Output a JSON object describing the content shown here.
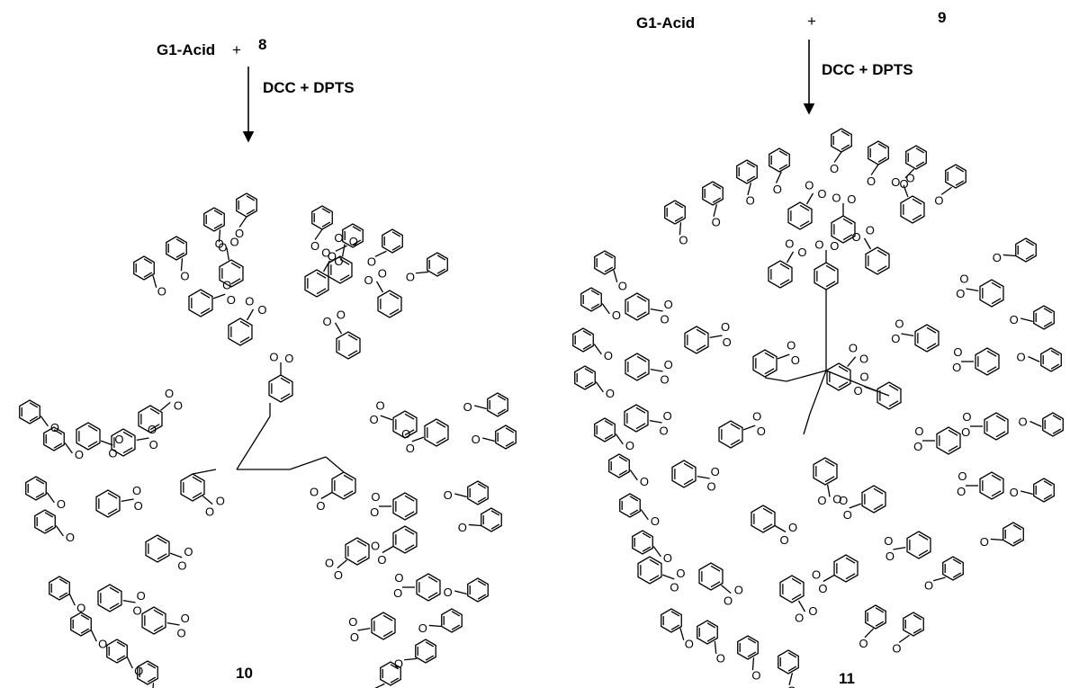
{
  "left_scheme": {
    "reagent_1": "G1-Acid",
    "plus": "+",
    "reagent_2": "8",
    "conditions": "DCC + DPTS",
    "product": "10"
  },
  "right_scheme": {
    "reagent_1": "G1-Acid",
    "plus": "+",
    "reagent_2": "9",
    "conditions": "DCC + DPTS",
    "product": "11"
  },
  "atom_label": "O"
}
